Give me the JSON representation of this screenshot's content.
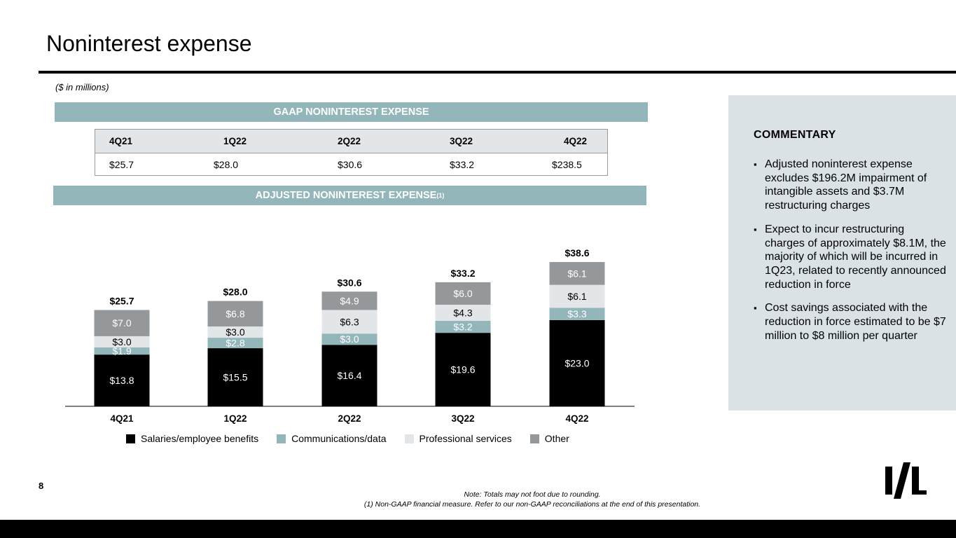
{
  "title": "Noninterest expense",
  "units_note": "($ in millions)",
  "gaap_section": {
    "header": "GAAP NONINTEREST EXPENSE",
    "columns": [
      "4Q21",
      "1Q22",
      "2Q22",
      "3Q22",
      "4Q22"
    ],
    "values": [
      "$25.7",
      "$28.0",
      "$30.6",
      "$33.2",
      "$238.5"
    ]
  },
  "adjusted_section": {
    "header": "ADJUSTED NONINTEREST EXPENSE",
    "footnote_marker": "(1)"
  },
  "colors": {
    "band": "#93b6bb",
    "salaries": "#000000",
    "communications": "#93b6bb",
    "professional": "#e2e6e9",
    "other": "#95989b",
    "commentary_bg": "#dbe2e5"
  },
  "chart_data": {
    "type": "bar",
    "stacked": true,
    "categories": [
      "4Q21",
      "1Q22",
      "2Q22",
      "3Q22",
      "4Q22"
    ],
    "series": [
      {
        "name": "Salaries/employee benefits",
        "values": [
          13.8,
          15.5,
          16.4,
          19.6,
          23.0
        ],
        "labels": [
          "$13.8",
          "$15.5",
          "$16.4",
          "$19.6",
          "$23.0"
        ]
      },
      {
        "name": "Communications/data",
        "values": [
          1.9,
          2.8,
          3.0,
          3.2,
          3.3
        ],
        "labels": [
          "$1.9",
          "$2.8",
          "$3.0",
          "$3.2",
          "$3.3"
        ]
      },
      {
        "name": "Professional services",
        "values": [
          3.0,
          3.0,
          6.3,
          4.3,
          6.1
        ],
        "labels": [
          "$3.0",
          "$3.0",
          "$6.3",
          "$4.3",
          "$6.1"
        ]
      },
      {
        "name": "Other",
        "values": [
          7.0,
          6.8,
          4.9,
          6.0,
          6.1
        ],
        "labels": [
          "$7.0",
          "$6.8",
          "$4.9",
          "$6.0",
          "$6.1"
        ]
      }
    ],
    "totals": [
      25.7,
      28.0,
      30.6,
      33.2,
      38.6
    ],
    "total_labels": [
      "$25.7",
      "$28.0",
      "$30.6",
      "$33.2",
      "$38.6"
    ],
    "legend_position": "bottom",
    "grid": false
  },
  "commentary": {
    "title": "COMMENTARY",
    "bullets": [
      "Adjusted noninterest expense excludes $196.2M impairment of intangible assets and $3.7M restructuring charges",
      "Expect to incur restructuring charges of approximately $8.1M, the majority of which will be incurred in 1Q23, related to recently announced reduction in force",
      "Cost savings associated with the reduction in force estimated to be $7 million to $8 million per quarter"
    ]
  },
  "page_number": "8",
  "notes": {
    "rounding": "Note: Totals may not foot due to rounding.",
    "non_gaap": "(1) Non-GAAP financial measure. Refer to our non-GAAP reconciliations at the end of this presentation."
  }
}
